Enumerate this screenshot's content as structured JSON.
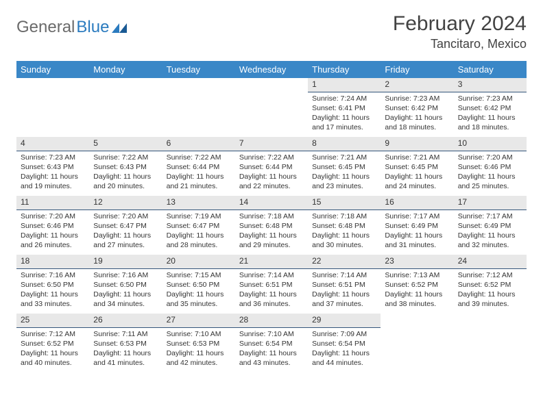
{
  "logo": {
    "text1": "General",
    "text2": "Blue"
  },
  "title": "February 2024",
  "location": "Tancitaro, Mexico",
  "colors": {
    "header_bg": "#3a87c7",
    "header_text": "#ffffff",
    "daybar_bg": "#e8e8e8",
    "daybar_border": "#34557a",
    "body_text": "#333333",
    "logo_gray": "#6a6a6a",
    "logo_blue": "#2b7bbf"
  },
  "weekdays": [
    "Sunday",
    "Monday",
    "Tuesday",
    "Wednesday",
    "Thursday",
    "Friday",
    "Saturday"
  ],
  "weeks": [
    [
      null,
      null,
      null,
      null,
      {
        "n": "1",
        "sr": "Sunrise: 7:24 AM",
        "ss": "Sunset: 6:41 PM",
        "d1": "Daylight: 11 hours",
        "d2": "and 17 minutes."
      },
      {
        "n": "2",
        "sr": "Sunrise: 7:23 AM",
        "ss": "Sunset: 6:42 PM",
        "d1": "Daylight: 11 hours",
        "d2": "and 18 minutes."
      },
      {
        "n": "3",
        "sr": "Sunrise: 7:23 AM",
        "ss": "Sunset: 6:42 PM",
        "d1": "Daylight: 11 hours",
        "d2": "and 18 minutes."
      }
    ],
    [
      {
        "n": "4",
        "sr": "Sunrise: 7:23 AM",
        "ss": "Sunset: 6:43 PM",
        "d1": "Daylight: 11 hours",
        "d2": "and 19 minutes."
      },
      {
        "n": "5",
        "sr": "Sunrise: 7:22 AM",
        "ss": "Sunset: 6:43 PM",
        "d1": "Daylight: 11 hours",
        "d2": "and 20 minutes."
      },
      {
        "n": "6",
        "sr": "Sunrise: 7:22 AM",
        "ss": "Sunset: 6:44 PM",
        "d1": "Daylight: 11 hours",
        "d2": "and 21 minutes."
      },
      {
        "n": "7",
        "sr": "Sunrise: 7:22 AM",
        "ss": "Sunset: 6:44 PM",
        "d1": "Daylight: 11 hours",
        "d2": "and 22 minutes."
      },
      {
        "n": "8",
        "sr": "Sunrise: 7:21 AM",
        "ss": "Sunset: 6:45 PM",
        "d1": "Daylight: 11 hours",
        "d2": "and 23 minutes."
      },
      {
        "n": "9",
        "sr": "Sunrise: 7:21 AM",
        "ss": "Sunset: 6:45 PM",
        "d1": "Daylight: 11 hours",
        "d2": "and 24 minutes."
      },
      {
        "n": "10",
        "sr": "Sunrise: 7:20 AM",
        "ss": "Sunset: 6:46 PM",
        "d1": "Daylight: 11 hours",
        "d2": "and 25 minutes."
      }
    ],
    [
      {
        "n": "11",
        "sr": "Sunrise: 7:20 AM",
        "ss": "Sunset: 6:46 PM",
        "d1": "Daylight: 11 hours",
        "d2": "and 26 minutes."
      },
      {
        "n": "12",
        "sr": "Sunrise: 7:20 AM",
        "ss": "Sunset: 6:47 PM",
        "d1": "Daylight: 11 hours",
        "d2": "and 27 minutes."
      },
      {
        "n": "13",
        "sr": "Sunrise: 7:19 AM",
        "ss": "Sunset: 6:47 PM",
        "d1": "Daylight: 11 hours",
        "d2": "and 28 minutes."
      },
      {
        "n": "14",
        "sr": "Sunrise: 7:18 AM",
        "ss": "Sunset: 6:48 PM",
        "d1": "Daylight: 11 hours",
        "d2": "and 29 minutes."
      },
      {
        "n": "15",
        "sr": "Sunrise: 7:18 AM",
        "ss": "Sunset: 6:48 PM",
        "d1": "Daylight: 11 hours",
        "d2": "and 30 minutes."
      },
      {
        "n": "16",
        "sr": "Sunrise: 7:17 AM",
        "ss": "Sunset: 6:49 PM",
        "d1": "Daylight: 11 hours",
        "d2": "and 31 minutes."
      },
      {
        "n": "17",
        "sr": "Sunrise: 7:17 AM",
        "ss": "Sunset: 6:49 PM",
        "d1": "Daylight: 11 hours",
        "d2": "and 32 minutes."
      }
    ],
    [
      {
        "n": "18",
        "sr": "Sunrise: 7:16 AM",
        "ss": "Sunset: 6:50 PM",
        "d1": "Daylight: 11 hours",
        "d2": "and 33 minutes."
      },
      {
        "n": "19",
        "sr": "Sunrise: 7:16 AM",
        "ss": "Sunset: 6:50 PM",
        "d1": "Daylight: 11 hours",
        "d2": "and 34 minutes."
      },
      {
        "n": "20",
        "sr": "Sunrise: 7:15 AM",
        "ss": "Sunset: 6:50 PM",
        "d1": "Daylight: 11 hours",
        "d2": "and 35 minutes."
      },
      {
        "n": "21",
        "sr": "Sunrise: 7:14 AM",
        "ss": "Sunset: 6:51 PM",
        "d1": "Daylight: 11 hours",
        "d2": "and 36 minutes."
      },
      {
        "n": "22",
        "sr": "Sunrise: 7:14 AM",
        "ss": "Sunset: 6:51 PM",
        "d1": "Daylight: 11 hours",
        "d2": "and 37 minutes."
      },
      {
        "n": "23",
        "sr": "Sunrise: 7:13 AM",
        "ss": "Sunset: 6:52 PM",
        "d1": "Daylight: 11 hours",
        "d2": "and 38 minutes."
      },
      {
        "n": "24",
        "sr": "Sunrise: 7:12 AM",
        "ss": "Sunset: 6:52 PM",
        "d1": "Daylight: 11 hours",
        "d2": "and 39 minutes."
      }
    ],
    [
      {
        "n": "25",
        "sr": "Sunrise: 7:12 AM",
        "ss": "Sunset: 6:52 PM",
        "d1": "Daylight: 11 hours",
        "d2": "and 40 minutes."
      },
      {
        "n": "26",
        "sr": "Sunrise: 7:11 AM",
        "ss": "Sunset: 6:53 PM",
        "d1": "Daylight: 11 hours",
        "d2": "and 41 minutes."
      },
      {
        "n": "27",
        "sr": "Sunrise: 7:10 AM",
        "ss": "Sunset: 6:53 PM",
        "d1": "Daylight: 11 hours",
        "d2": "and 42 minutes."
      },
      {
        "n": "28",
        "sr": "Sunrise: 7:10 AM",
        "ss": "Sunset: 6:54 PM",
        "d1": "Daylight: 11 hours",
        "d2": "and 43 minutes."
      },
      {
        "n": "29",
        "sr": "Sunrise: 7:09 AM",
        "ss": "Sunset: 6:54 PM",
        "d1": "Daylight: 11 hours",
        "d2": "and 44 minutes."
      },
      null,
      null
    ]
  ]
}
